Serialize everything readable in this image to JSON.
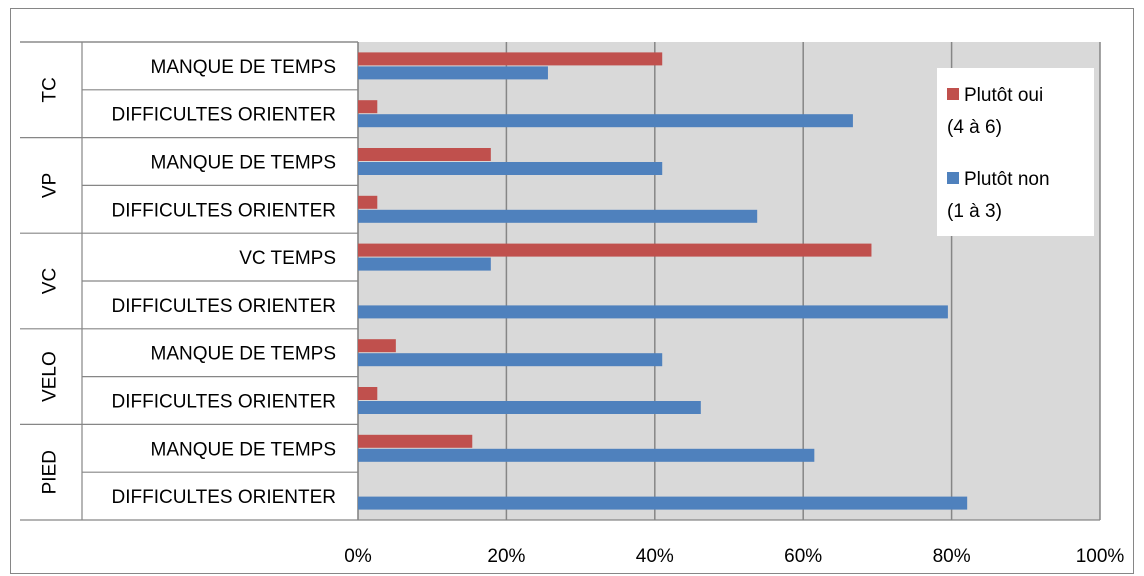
{
  "chart_data": {
    "type": "bar",
    "orientation": "horizontal",
    "groups": [
      {
        "name": "TC",
        "categories": [
          "MANQUE DE TEMPS",
          "DIFFICULTES ORIENTER"
        ]
      },
      {
        "name": "VP",
        "categories": [
          "MANQUE DE TEMPS",
          "DIFFICULTES ORIENTER"
        ]
      },
      {
        "name": "VC",
        "categories": [
          "VC TEMPS",
          "DIFFICULTES ORIENTER"
        ]
      },
      {
        "name": "VELO",
        "categories": [
          "MANQUE DE TEMPS",
          "DIFFICULTES ORIENTER"
        ]
      },
      {
        "name": "PIED",
        "categories": [
          "MANQUE DE TEMPS",
          "DIFFICULTES ORIENTER"
        ]
      }
    ],
    "series": [
      {
        "name": "Plutôt oui (4 à 6)",
        "color": "#C0504D",
        "values": [
          41.0,
          2.6,
          17.9,
          2.6,
          69.2,
          0.0,
          5.1,
          2.6,
          15.4,
          0.0
        ]
      },
      {
        "name": "Plutôt non (1 à 3)",
        "color": "#4F81BD",
        "values": [
          25.6,
          66.7,
          41.0,
          53.8,
          17.9,
          79.5,
          41.0,
          46.2,
          61.5,
          82.1
        ]
      }
    ],
    "xlim": [
      0,
      100
    ],
    "xticks": [
      "0%",
      "20%",
      "40%",
      "60%",
      "80%",
      "100%"
    ],
    "grid": true,
    "legend_position": "top-right",
    "legend": {
      "oui_line1": "Plutôt oui",
      "oui_line2": "(4 à 6)",
      "non_line1": "Plutôt non",
      "non_line2": "(1 à 3)"
    },
    "plot_background": "#D9D9D9"
  }
}
